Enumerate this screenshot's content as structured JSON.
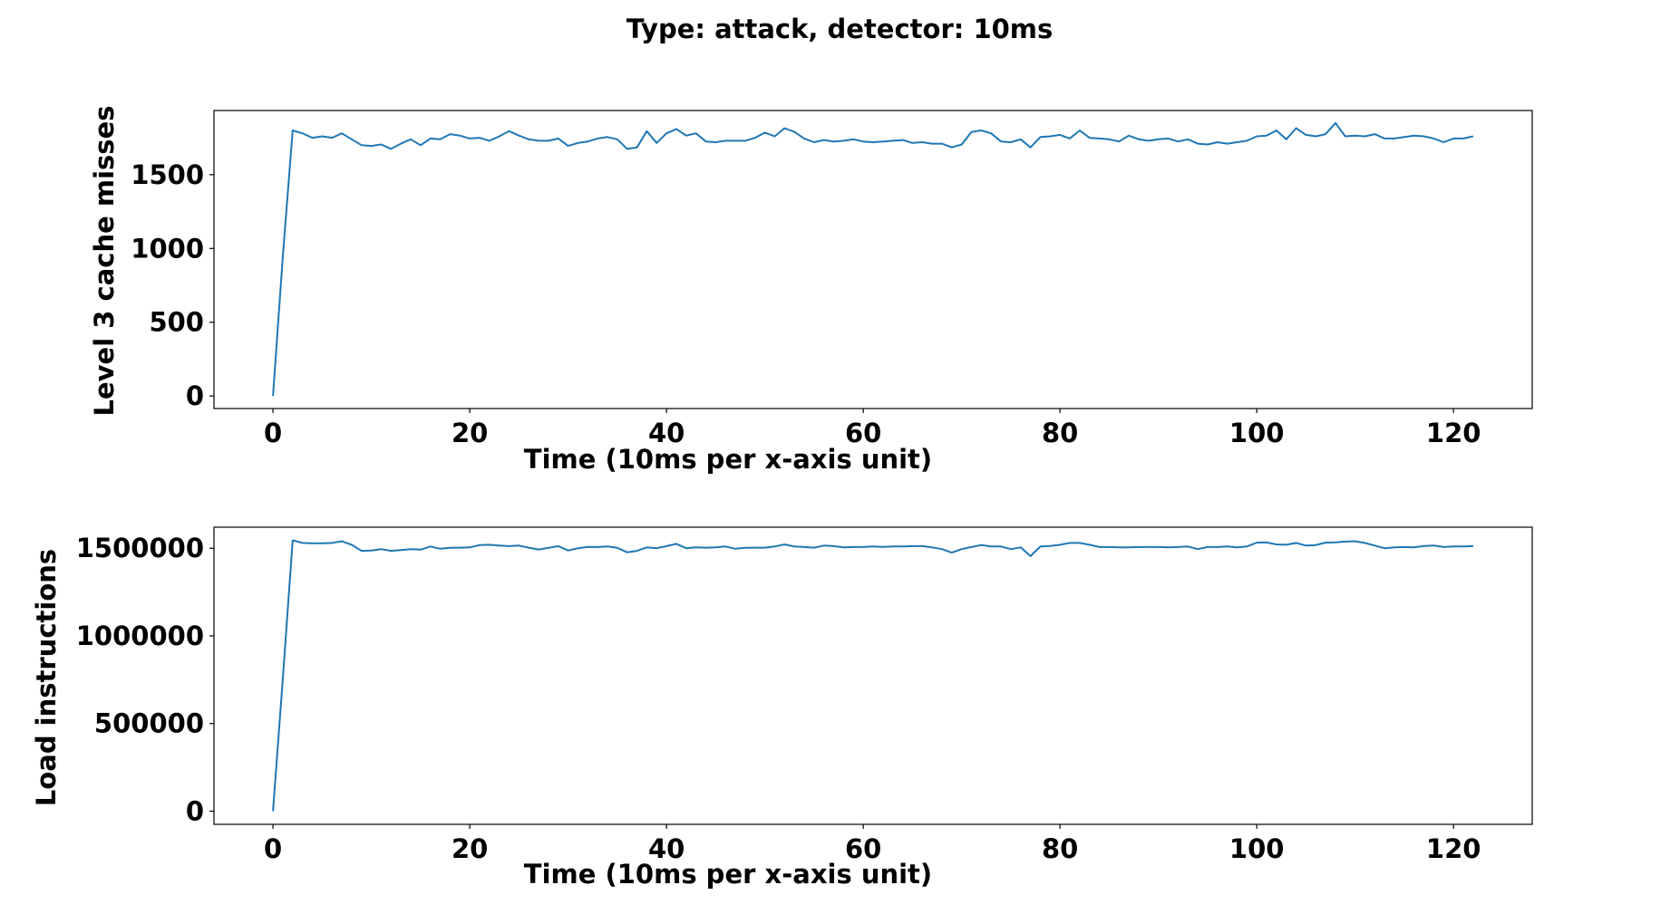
{
  "figure": {
    "title": "Type: attack,   detector: 10ms"
  },
  "chart_data": [
    {
      "type": "line",
      "title": "",
      "xlabel": "Time (10ms per x-axis unit)",
      "ylabel": "Level 3 cache misses",
      "xlim": [
        -6,
        128
      ],
      "ylim": [
        -85,
        1935
      ],
      "xticks": [
        0,
        20,
        40,
        60,
        80,
        100,
        120
      ],
      "xtick_labels": [
        "0",
        "20",
        "40",
        "60",
        "80",
        "100",
        "120"
      ],
      "yticks": [
        0,
        500,
        1000,
        1500
      ],
      "ytick_labels": [
        "0",
        "500",
        "1000",
        "1500"
      ],
      "grid": false,
      "line_color": "#1f77b4",
      "series": [
        {
          "x": [
            0,
            1,
            2,
            3,
            4,
            5,
            6,
            7,
            8,
            9,
            10,
            11,
            12,
            13,
            14,
            15,
            16,
            17,
            18,
            19,
            20,
            21,
            22,
            23,
            24,
            25,
            26,
            27,
            28,
            29,
            30,
            31,
            32,
            33,
            34,
            35,
            36,
            37,
            38,
            39,
            40,
            41,
            42,
            43,
            44,
            45,
            46,
            47,
            48,
            49,
            50,
            51,
            52,
            53,
            54,
            55,
            56,
            57,
            58,
            59,
            60,
            61,
            62,
            63,
            64,
            65,
            66,
            67,
            68,
            69,
            70,
            71,
            72,
            73,
            74,
            75,
            76,
            77,
            78,
            79,
            80,
            81,
            82,
            83,
            84,
            85,
            86,
            87,
            88,
            89,
            90,
            91,
            92,
            93,
            94,
            95,
            96,
            97,
            98,
            99,
            100,
            101,
            102,
            103,
            104,
            105,
            106,
            107,
            108,
            109,
            110,
            111,
            112,
            113,
            114,
            115,
            116,
            117,
            118,
            119,
            120,
            121,
            122
          ],
          "values": [
            0,
            950,
            1800,
            1780,
            1750,
            1760,
            1750,
            1780,
            1740,
            1700,
            1695,
            1705,
            1675,
            1710,
            1740,
            1700,
            1745,
            1740,
            1775,
            1765,
            1745,
            1750,
            1730,
            1760,
            1795,
            1765,
            1740,
            1730,
            1730,
            1745,
            1695,
            1715,
            1725,
            1745,
            1755,
            1740,
            1675,
            1685,
            1795,
            1715,
            1780,
            1810,
            1765,
            1780,
            1725,
            1720,
            1730,
            1730,
            1730,
            1750,
            1785,
            1760,
            1815,
            1790,
            1745,
            1720,
            1735,
            1725,
            1730,
            1740,
            1725,
            1720,
            1725,
            1730,
            1735,
            1715,
            1720,
            1710,
            1710,
            1685,
            1705,
            1790,
            1800,
            1780,
            1725,
            1720,
            1740,
            1685,
            1755,
            1760,
            1770,
            1745,
            1800,
            1750,
            1745,
            1740,
            1725,
            1765,
            1740,
            1730,
            1740,
            1745,
            1725,
            1740,
            1710,
            1705,
            1720,
            1710,
            1720,
            1730,
            1760,
            1765,
            1800,
            1740,
            1815,
            1770,
            1760,
            1775,
            1850,
            1760,
            1765,
            1760,
            1775,
            1745,
            1745,
            1755,
            1765,
            1760,
            1745,
            1720,
            1745,
            1745,
            1760
          ]
        }
      ]
    },
    {
      "type": "line",
      "title": "",
      "xlabel": "Time (10ms per x-axis unit)",
      "ylabel": "Load instructions",
      "xlim": [
        -6,
        128
      ],
      "ylim": [
        -75000,
        1620000
      ],
      "xticks": [
        0,
        20,
        40,
        60,
        80,
        100,
        120
      ],
      "xtick_labels": [
        "0",
        "20",
        "40",
        "60",
        "80",
        "100",
        "120"
      ],
      "yticks": [
        0,
        500000,
        1000000,
        1500000
      ],
      "ytick_labels": [
        "0",
        "500000",
        "1000000",
        "1500000"
      ],
      "grid": false,
      "line_color": "#1f77b4",
      "series": [
        {
          "x": [
            0,
            1,
            2,
            3,
            4,
            5,
            6,
            7,
            8,
            9,
            10,
            11,
            12,
            13,
            14,
            15,
            16,
            17,
            18,
            19,
            20,
            21,
            22,
            23,
            24,
            25,
            26,
            27,
            28,
            29,
            30,
            31,
            32,
            33,
            34,
            35,
            36,
            37,
            38,
            39,
            40,
            41,
            42,
            43,
            44,
            45,
            46,
            47,
            48,
            49,
            50,
            51,
            52,
            53,
            54,
            55,
            56,
            57,
            58,
            59,
            60,
            61,
            62,
            63,
            64,
            65,
            66,
            67,
            68,
            69,
            70,
            71,
            72,
            73,
            74,
            75,
            76,
            77,
            78,
            79,
            80,
            81,
            82,
            83,
            84,
            85,
            86,
            87,
            88,
            89,
            90,
            91,
            92,
            93,
            94,
            95,
            96,
            97,
            98,
            99,
            100,
            101,
            102,
            103,
            104,
            105,
            106,
            107,
            108,
            109,
            110,
            111,
            112,
            113,
            114,
            115,
            116,
            117,
            118,
            119,
            120,
            121,
            122
          ],
          "values": [
            0,
            760000,
            1545000,
            1530000,
            1528000,
            1528000,
            1530000,
            1540000,
            1520000,
            1485000,
            1487000,
            1495000,
            1485000,
            1490000,
            1495000,
            1492000,
            1510000,
            1497000,
            1502000,
            1503000,
            1505000,
            1518000,
            1520000,
            1515000,
            1512000,
            1515000,
            1503000,
            1493000,
            1502000,
            1512000,
            1487000,
            1500000,
            1508000,
            1507000,
            1510000,
            1502000,
            1477000,
            1485000,
            1505000,
            1500000,
            1512000,
            1525000,
            1500000,
            1505000,
            1503000,
            1505000,
            1510000,
            1497000,
            1502000,
            1503000,
            1503000,
            1510000,
            1522000,
            1510000,
            1507000,
            1503000,
            1515000,
            1512000,
            1505000,
            1507000,
            1507000,
            1510000,
            1508000,
            1510000,
            1510000,
            1512000,
            1512000,
            1505000,
            1495000,
            1475000,
            1495000,
            1507000,
            1518000,
            1510000,
            1510000,
            1495000,
            1505000,
            1455000,
            1510000,
            1513000,
            1520000,
            1530000,
            1530000,
            1520000,
            1507000,
            1507000,
            1505000,
            1505000,
            1507000,
            1507000,
            1507000,
            1505000,
            1507000,
            1510000,
            1495000,
            1507000,
            1507000,
            1510000,
            1505000,
            1510000,
            1532000,
            1533000,
            1522000,
            1520000,
            1530000,
            1515000,
            1518000,
            1532000,
            1533000,
            1538000,
            1540000,
            1530000,
            1515000,
            1500000,
            1505000,
            1507000,
            1505000,
            1513000,
            1515000,
            1507000,
            1510000,
            1510000,
            1512000
          ]
        }
      ]
    }
  ]
}
